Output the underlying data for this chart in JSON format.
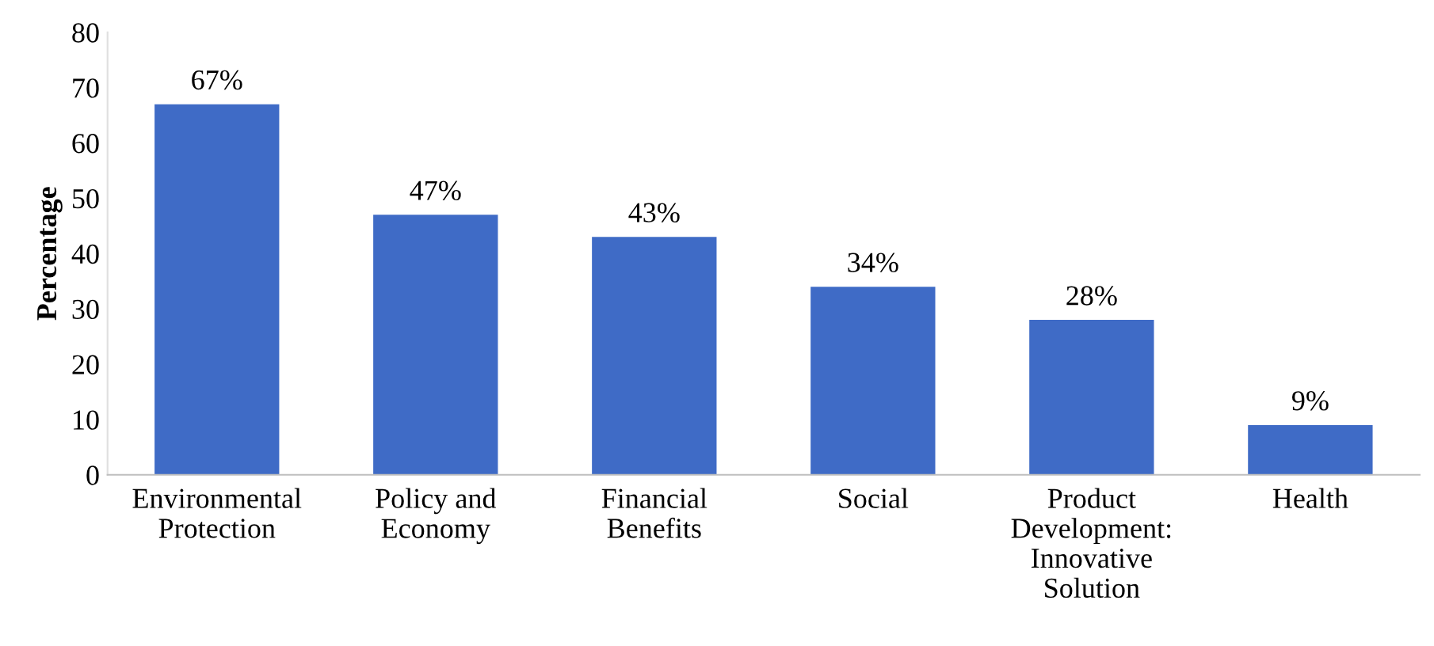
{
  "chart_data": {
    "type": "bar",
    "ylabel": "Percentage",
    "categories": [
      "Environmental\nProtection",
      "Policy and\nEconomy",
      "Financial\nBenefits",
      "Social",
      "Product\nDevelopment:\nInnovative\nSolution",
      "Health"
    ],
    "values": [
      67,
      47,
      43,
      34,
      28,
      9
    ],
    "value_labels": [
      "67%",
      "47%",
      "43%",
      "34%",
      "28%",
      "9%"
    ],
    "color": "#3f6bc6",
    "ylim": [
      0,
      80
    ],
    "yticks": [
      0,
      10,
      20,
      30,
      40,
      50,
      60,
      70,
      80
    ],
    "grid": false,
    "legend": false
  }
}
